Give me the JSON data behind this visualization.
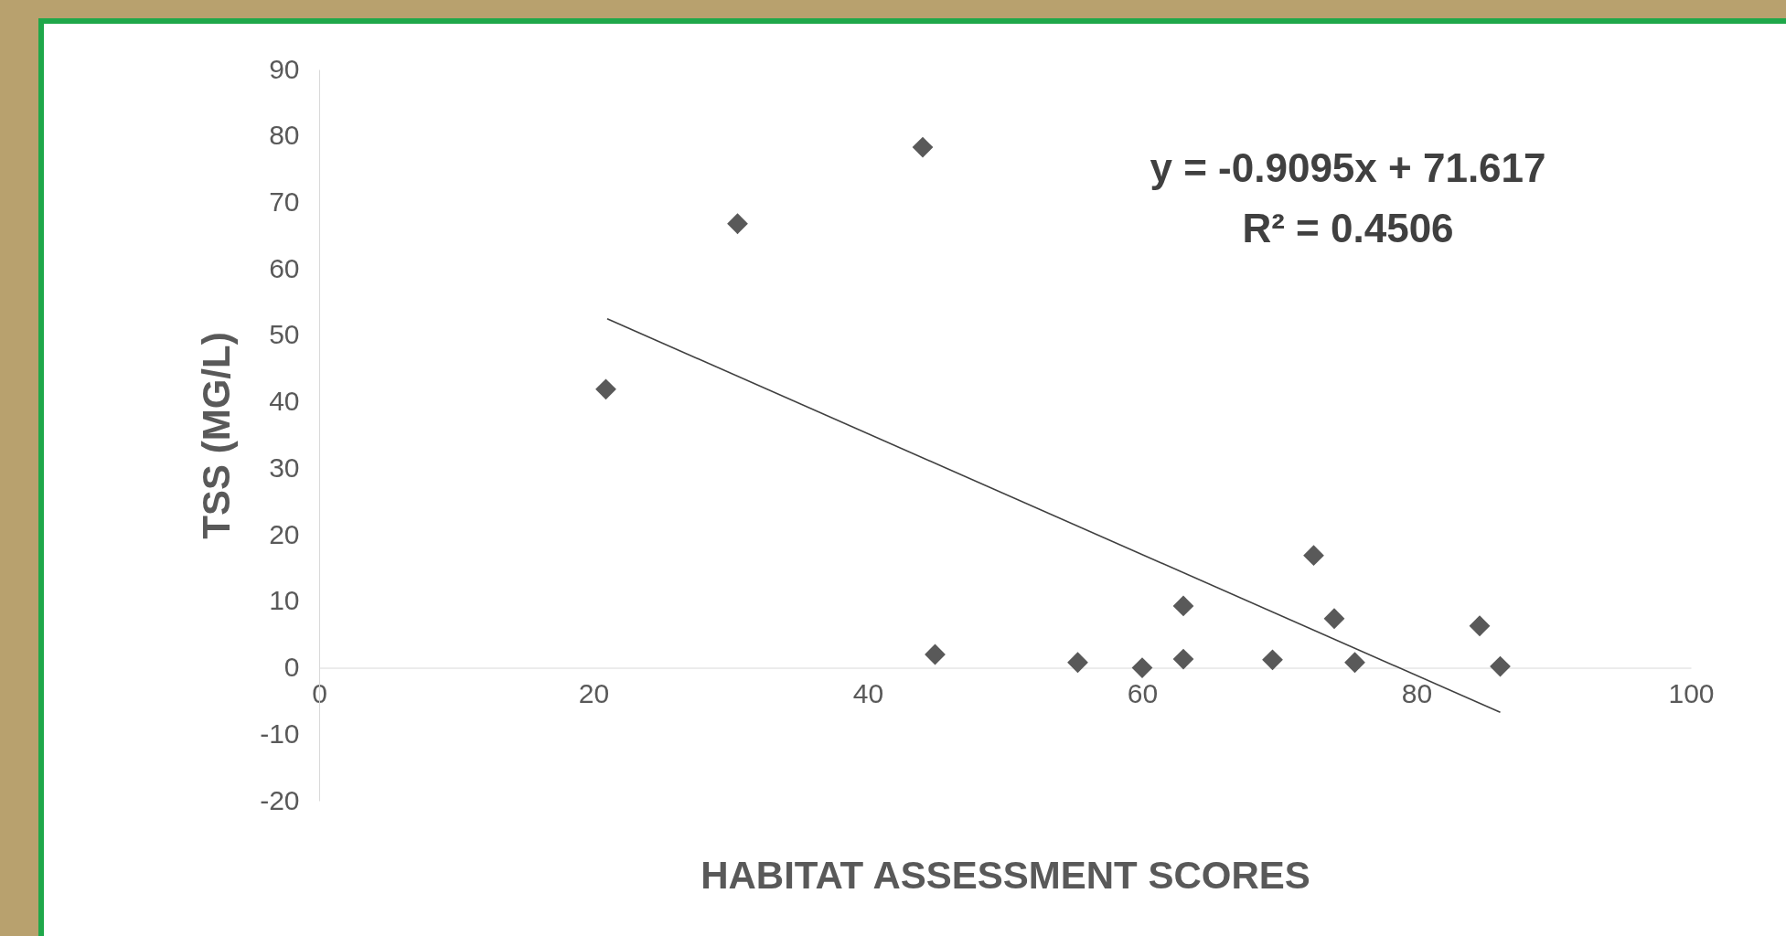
{
  "chart_data": {
    "type": "scatter",
    "xlabel": "HABITAT ASSESSMENT SCORES",
    "ylabel": "TSS (MG/L)",
    "annotations": [
      "y = -0.9095x + 71.617",
      "R² = 0.4506"
    ],
    "xlim": [
      0,
      100
    ],
    "xticks": [
      0,
      20,
      40,
      60,
      80,
      100
    ],
    "ylim": [
      -20,
      90
    ],
    "yticks": [
      -20,
      -10,
      0,
      10,
      20,
      30,
      40,
      50,
      60,
      70,
      80,
      90
    ],
    "grid": false,
    "marker": "diamond",
    "series": [
      {
        "color": "#595959",
        "x": [
          20.9,
          30.5,
          44.0,
          44.9,
          55.3,
          60.0,
          63.0,
          63.0,
          69.5,
          72.5,
          74.0,
          75.5,
          84.6,
          86.1
        ],
        "values": [
          41.9,
          66.8,
          78.3,
          2.0,
          0.8,
          0,
          9.3,
          1.3,
          1.2,
          16.9,
          7.4,
          0.8,
          6.3,
          0.2
        ]
      },
      {
        "type": "line",
        "marker": "none",
        "color": "#404040",
        "line_style": "solid",
        "x": [
          21,
          86.1
        ],
        "values": [
          52.5,
          -6.7
        ]
      }
    ]
  }
}
